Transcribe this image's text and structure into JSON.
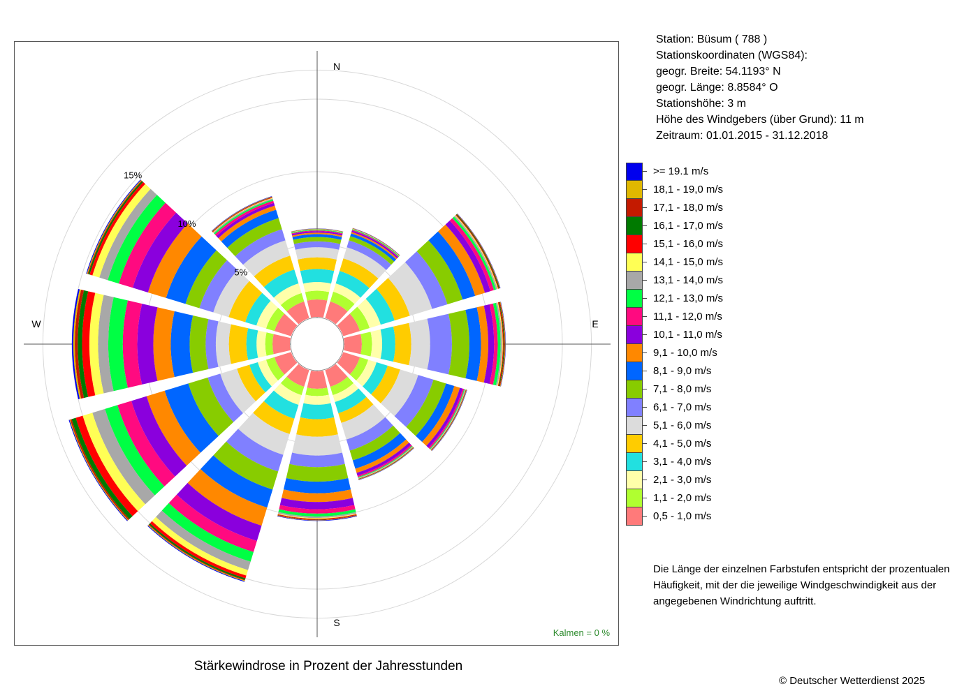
{
  "station_info": {
    "station": "Station:  Büsum  ( 788 )",
    "coords_heading": "Stationskoordinaten (WGS84):",
    "latitude": "geogr. Breite: 54.1193° N",
    "longitude": "geogr. Länge:   8.8584° O",
    "elevation": "Stationshöhe: 3 m",
    "sensor_height": "Höhe des Windgebers (über Grund): 11 m",
    "period": "Zeitraum: 01.01.2015 - 31.12.2018"
  },
  "legend": [
    {
      "label": ">= 19.1 m/s",
      "color": "#0000ee"
    },
    {
      "label": "18,1 - 19,0 m/s",
      "color": "#e0b800"
    },
    {
      "label": "17,1 - 18,0 m/s",
      "color": "#c41a00"
    },
    {
      "label": "16,1 - 17,0 m/s",
      "color": "#007a00"
    },
    {
      "label": "15,1 - 16,0 m/s",
      "color": "#ff0000"
    },
    {
      "label": "14,1 - 15,0 m/s",
      "color": "#ffff55"
    },
    {
      "label": "13,1 - 14,0 m/s",
      "color": "#a8a8a8"
    },
    {
      "label": "12,1 - 13,0 m/s",
      "color": "#00ff44"
    },
    {
      "label": "11,1 - 12,0 m/s",
      "color": "#ff0a80"
    },
    {
      "label": "10,1 - 11,0 m/s",
      "color": "#8a00dd"
    },
    {
      "label": "9,1 - 10,0 m/s",
      "color": "#ff8800"
    },
    {
      "label": "8,1 - 9,0 m/s",
      "color": "#0066ff"
    },
    {
      "label": "7,1 - 8,0 m/s",
      "color": "#88cc00"
    },
    {
      "label": "6,1 - 7,0 m/s",
      "color": "#8080ff"
    },
    {
      "label": "5,1 - 6,0 m/s",
      "color": "#dcdcdc"
    },
    {
      "label": "4,1 - 5,0 m/s",
      "color": "#ffcc00"
    },
    {
      "label": "3,1 - 4,0 m/s",
      "color": "#22e0e0"
    },
    {
      "label": "2,1 - 3,0 m/s",
      "color": "#ffffaa"
    },
    {
      "label": "1,1 - 2,0 m/s",
      "color": "#b0ff30"
    },
    {
      "label": "0,5 - 1,0 m/s",
      "color": "#ff7a7a"
    }
  ],
  "note": "Die Länge der einzelnen Farbstufen entspricht der prozentualen Häufigkeit, mit der die jeweilige Windgeschwindigkeit aus der angegebenen Windrichtung auftritt.",
  "calm": "Kalmen  =  0 %",
  "caption": "Stärkewindrose in Prozent der Jahresstunden",
  "copyright": "© Deutscher Wetterdienst  2025",
  "chart_data": {
    "type": "wind-rose",
    "title": "Stärkewindrose in Prozent der Jahresstunden",
    "direction_labels": [
      "N",
      "E",
      "S",
      "W"
    ],
    "ring_labels": [
      "5%",
      "10%",
      "15%"
    ],
    "ring_values": [
      5,
      10,
      15
    ],
    "r_max": 17,
    "sector_width_deg": 30,
    "sector_gap_deg": 4,
    "calm_percent": 0,
    "speed_classes": [
      "0,5 - 1,0 m/s",
      "1,1 - 2,0 m/s",
      "2,1 - 3,0 m/s",
      "3,1 - 4,0 m/s",
      "4,1 - 5,0 m/s",
      "5,1 - 6,0 m/s",
      "6,1 - 7,0 m/s",
      "7,1 - 8,0 m/s",
      "8,1 - 9,0 m/s",
      "9,1 - 10,0 m/s",
      "10,1 - 11,0 m/s",
      "11,1 - 12,0 m/s",
      "12,1 - 13,0 m/s",
      "13,1 - 14,0 m/s",
      "14,1 - 15,0 m/s",
      "15,1 - 16,0 m/s",
      "16,1 - 17,0 m/s",
      "17,1 - 18,0 m/s",
      "18,1 - 19,0 m/s",
      ">= 19.1 m/s"
    ],
    "sectors": [
      {
        "direction_deg": 0,
        "cumulative_percent": [
          1.2,
          1.8,
          2.4,
          3.3,
          4.1,
          4.8,
          5.2,
          5.5,
          5.7,
          5.8,
          5.9,
          5.95,
          6.0,
          6.02,
          6.04,
          6.05,
          6.06,
          6.07,
          6.08,
          6.09
        ]
      },
      {
        "direction_deg": 30,
        "cumulative_percent": [
          1.2,
          1.9,
          2.5,
          3.4,
          4.3,
          5.1,
          5.6,
          5.9,
          6.1,
          6.2,
          6.3,
          6.35,
          6.4,
          6.42,
          6.44,
          6.45,
          6.46,
          6.47,
          6.48,
          6.49
        ]
      },
      {
        "direction_deg": 60,
        "cumulative_percent": [
          1.2,
          1.9,
          2.7,
          3.7,
          4.8,
          6.4,
          7.5,
          8.6,
          9.5,
          10.2,
          10.6,
          10.85,
          11.0,
          11.1,
          11.15,
          11.2,
          11.25,
          11.28,
          11.3,
          11.32
        ]
      },
      {
        "direction_deg": 90,
        "cumulative_percent": [
          1.2,
          1.9,
          2.6,
          3.5,
          4.6,
          5.9,
          7.4,
          8.6,
          9.4,
          9.9,
          10.3,
          10.55,
          10.75,
          10.85,
          10.9,
          10.95,
          11.0,
          11.05,
          11.08,
          11.1
        ]
      },
      {
        "direction_deg": 120,
        "cumulative_percent": [
          1.2,
          1.8,
          2.4,
          3.2,
          4.1,
          5.4,
          6.5,
          7.4,
          8.0,
          8.4,
          8.6,
          8.7,
          8.75,
          8.8,
          8.82,
          8.84,
          8.86,
          8.88,
          8.9,
          8.92
        ]
      },
      {
        "direction_deg": 150,
        "cumulative_percent": [
          1.2,
          1.8,
          2.3,
          3.1,
          3.8,
          5.0,
          5.8,
          6.5,
          7.1,
          7.4,
          7.6,
          7.7,
          7.75,
          7.8,
          7.82,
          7.84,
          7.86,
          7.88,
          7.9,
          7.92
        ]
      },
      {
        "direction_deg": 180,
        "cumulative_percent": [
          1.2,
          1.7,
          2.3,
          3.3,
          4.5,
          5.8,
          6.6,
          7.6,
          8.4,
          9.0,
          9.5,
          9.8,
          10.0,
          10.1,
          10.15,
          10.2,
          10.22,
          10.25,
          10.27,
          10.3
        ]
      },
      {
        "direction_deg": 210,
        "cumulative_percent": [
          1.2,
          1.8,
          2.5,
          3.5,
          4.6,
          6.1,
          7.3,
          8.6,
          9.9,
          11.2,
          12.3,
          13.1,
          13.8,
          14.4,
          14.8,
          15.0,
          15.1,
          15.15,
          15.2,
          15.25
        ]
      },
      {
        "direction_deg": 240,
        "cumulative_percent": [
          1.2,
          1.8,
          2.4,
          3.0,
          3.9,
          5.1,
          6.0,
          7.4,
          9.1,
          10.4,
          11.5,
          12.5,
          13.4,
          14.3,
          15.0,
          15.5,
          15.8,
          15.9,
          15.95,
          16.0
        ]
      },
      {
        "direction_deg": 270,
        "cumulative_percent": [
          1.2,
          1.7,
          2.3,
          3.0,
          4.2,
          5.1,
          5.8,
          6.9,
          8.2,
          9.4,
          10.5,
          11.5,
          12.5,
          13.2,
          13.8,
          14.3,
          14.6,
          14.8,
          14.9,
          15.0
        ]
      },
      {
        "direction_deg": 300,
        "cumulative_percent": [
          1.2,
          1.8,
          2.5,
          3.3,
          4.5,
          5.6,
          6.6,
          7.6,
          9.0,
          10.3,
          11.4,
          12.4,
          13.2,
          13.8,
          14.3,
          14.5,
          14.6,
          14.65,
          14.7,
          14.75
        ]
      },
      {
        "direction_deg": 330,
        "cumulative_percent": [
          1.2,
          1.8,
          2.5,
          3.5,
          4.5,
          5.6,
          6.4,
          7.2,
          7.8,
          8.1,
          8.3,
          8.45,
          8.55,
          8.62,
          8.66,
          8.7,
          8.72,
          8.74,
          8.76,
          8.78
        ]
      }
    ]
  }
}
